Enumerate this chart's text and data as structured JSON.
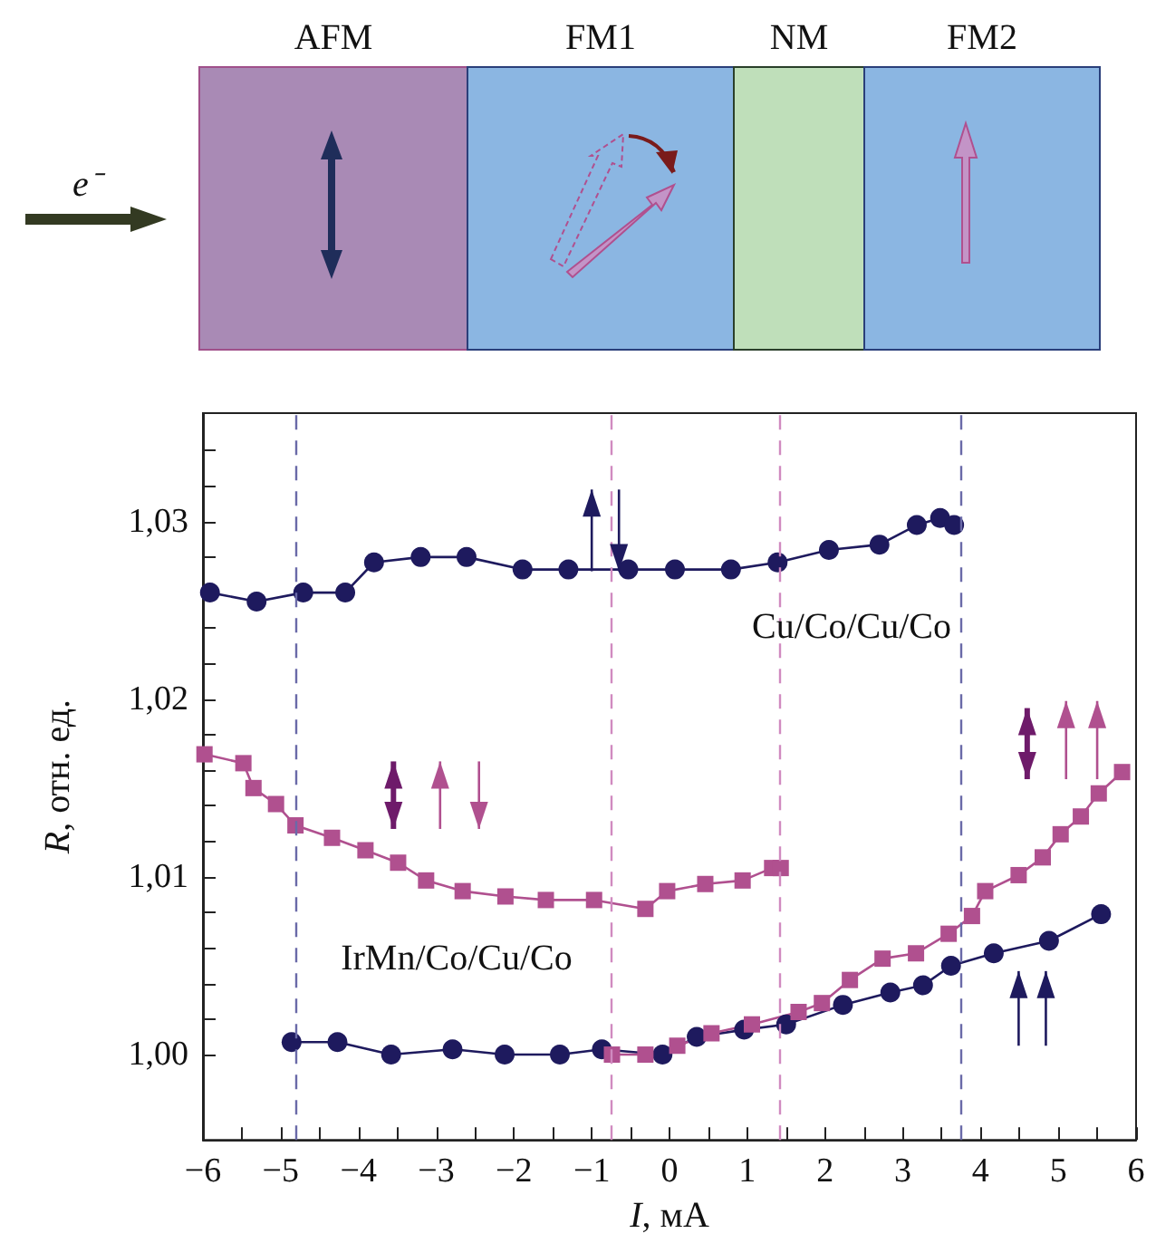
{
  "chart_data": {
    "type": "line",
    "xlabel": "I, мА",
    "ylabel": "R, отн. ед.",
    "xlim": [
      -6,
      6
    ],
    "ylim": [
      0.9952,
      1.0361
    ],
    "xticks": [
      -6,
      {
        "value": -5.5,
        "label": null
      },
      -5,
      {
        "value": -4.5,
        "label": null
      },
      -4,
      {
        "value": -3.5,
        "label": null
      },
      -3,
      {
        "value": -2.5,
        "label": null
      },
      -2,
      {
        "value": -1.5,
        "label": null
      },
      -1,
      {
        "value": -0.5,
        "label": null
      },
      0,
      {
        "value": 0.5,
        "label": null
      },
      1,
      {
        "value": 1.5,
        "label": null
      },
      2,
      {
        "value": 2.5,
        "label": null
      },
      3,
      {
        "value": 3.5,
        "label": null
      },
      4,
      {
        "value": 4.5,
        "label": null
      },
      5,
      {
        "value": 5.5,
        "label": null
      },
      6
    ],
    "yticks": [
      {
        "value": 1.0,
        "label": "1,00"
      },
      {
        "value": 1.002,
        "label": null
      },
      {
        "value": 1.004,
        "label": null
      },
      {
        "value": 1.006,
        "label": null
      },
      {
        "value": 1.008,
        "label": null
      },
      {
        "value": 1.01,
        "label": "1,01"
      },
      {
        "value": 1.012,
        "label": null
      },
      {
        "value": 1.014,
        "label": null
      },
      {
        "value": 1.016,
        "label": null
      },
      {
        "value": 1.018,
        "label": null
      },
      {
        "value": 1.02,
        "label": "1,02"
      },
      {
        "value": 1.022,
        "label": null
      },
      {
        "value": 1.024,
        "label": null
      },
      {
        "value": 1.026,
        "label": null
      },
      {
        "value": 1.028,
        "label": null
      },
      {
        "value": 1.03,
        "label": "1,03"
      },
      {
        "value": 1.032,
        "label": null
      },
      {
        "value": 1.034,
        "label": null
      }
    ],
    "grid": false,
    "line_style": "solid",
    "series": [
      {
        "color": "#1e1a5e",
        "marker": "circle",
        "x": [
          -5.91,
          -5.31,
          -4.71,
          -4.17,
          -3.8,
          -3.2,
          -2.61,
          -1.89,
          -1.3,
          -0.53,
          0.07,
          0.79,
          1.39,
          2.05,
          2.7,
          3.18,
          3.48,
          3.66
        ],
        "values": [
          1.026,
          1.0255,
          1.026,
          1.026,
          1.0277,
          1.028,
          1.028,
          1.0273,
          1.0273,
          1.0273,
          1.0273,
          1.0273,
          1.0277,
          1.0284,
          1.0287,
          1.0298,
          1.0302,
          1.0298
        ]
      },
      {
        "color": "#1e1a5e",
        "marker": "circle",
        "x": [
          -4.86,
          -4.27,
          -3.58,
          -2.79,
          -2.12,
          -1.41,
          -0.87,
          -0.09,
          0.35,
          0.96,
          1.5,
          2.23,
          2.84,
          3.26,
          3.62,
          4.17,
          4.88,
          5.55
        ],
        "values": [
          1.0007,
          1.0007,
          1.0,
          1.0003,
          1.0,
          1.0,
          1.0003,
          1.0,
          1.001,
          1.0014,
          1.0017,
          1.0028,
          1.0035,
          1.0039,
          1.005,
          1.0057,
          1.0064,
          1.0079
        ]
      },
      {
        "color": "#b0508f",
        "marker": "square",
        "x": [
          -5.98,
          -5.48,
          -5.35,
          -5.06,
          -4.81,
          -4.34,
          -3.91,
          -3.49,
          -3.13,
          -2.66,
          -2.11,
          -1.59,
          -0.97,
          -0.31,
          -0.03,
          0.46,
          0.94,
          1.32,
          1.43
        ],
        "values": [
          1.0169,
          1.0164,
          1.015,
          1.0141,
          1.0129,
          1.0122,
          1.0115,
          1.0108,
          1.0098,
          1.0092,
          1.0089,
          1.0087,
          1.0087,
          1.0082,
          1.0092,
          1.0096,
          1.0098,
          1.0105,
          1.0105
        ]
      },
      {
        "color": "#b0508f",
        "marker": "square",
        "x": [
          -0.74,
          -0.31,
          0.1,
          0.54,
          1.06,
          1.66,
          1.96,
          2.32,
          2.74,
          3.17,
          3.59,
          3.89,
          4.06,
          4.49,
          4.8,
          5.03,
          5.29,
          5.52,
          5.82
        ],
        "values": [
          1.0,
          1.0,
          1.0005,
          1.0012,
          1.0017,
          1.0024,
          1.0029,
          1.0042,
          1.0054,
          1.0057,
          1.0068,
          1.0078,
          1.0092,
          1.0101,
          1.0111,
          1.0124,
          1.0134,
          1.0147,
          1.0159
        ]
      }
    ],
    "ref_lines": [
      {
        "axis": "x",
        "value": -4.8,
        "color": "#6a6aa8",
        "line_style": "dashed"
      },
      {
        "axis": "x",
        "value": 3.74,
        "color": "#6a6aa8",
        "line_style": "dashed"
      },
      {
        "axis": "x",
        "value": -0.74,
        "color": "#d08ac0",
        "line_style": "dashed"
      },
      {
        "axis": "x",
        "value": 1.41,
        "color": "#d08ac0",
        "line_style": "dashed"
      }
    ],
    "annotations": [
      "AFM",
      "FM1",
      "NM",
      "FM2",
      "e⁻",
      "Cu/Co/Cu/Co",
      "IrMn/Co/Cu/Co"
    ]
  }
}
